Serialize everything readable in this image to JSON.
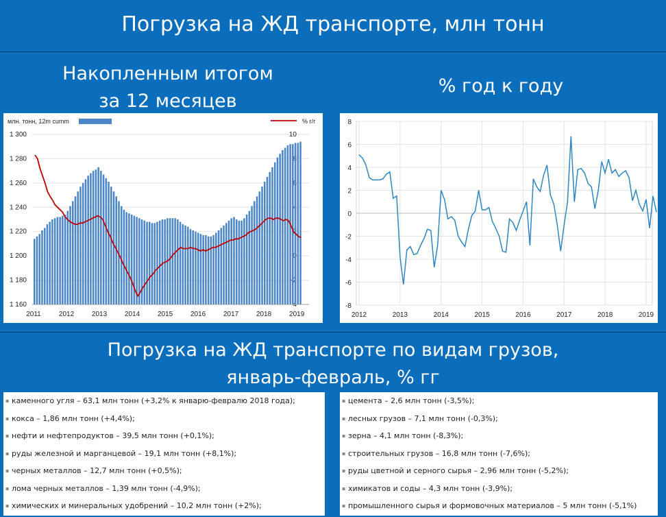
{
  "header": {
    "title": "Погрузка на ЖД транспорте, млн тонн",
    "left_subtitle_line1": "Накопленным итогом",
    "left_subtitle_line2": "за 12 месяцев",
    "right_subtitle": "% год к году",
    "section2_line1": "Погрузка на ЖД транспорте по видам грузов,",
    "section2_line2": "январь-февраль, % гг"
  },
  "chart_data": [
    {
      "type": "bar",
      "legend_left": "млн. тонн, 12m cumm",
      "legend_right": "% г/г",
      "bar_color": "#4a86c8",
      "line_color": "#c00000",
      "x_ticks": [
        "2011",
        "2012",
        "2013",
        "2014",
        "2015",
        "2016",
        "2017",
        "2018",
        "2019"
      ],
      "ylim": [
        1160,
        1300
      ],
      "y_ticks": [
        "1 160",
        "1 180",
        "1 200",
        "1 220",
        "1 240",
        "1 260",
        "1 280",
        "1 300"
      ],
      "y2lim": [
        -4,
        10
      ],
      "y2_ticks": [
        "-4",
        "-2",
        "0",
        "2",
        "4",
        "6",
        "8",
        "10"
      ],
      "series": [
        {
          "values": [
            1214,
            1216,
            1218,
            1221,
            1223,
            1226,
            1228,
            1230,
            1231,
            1232,
            1232,
            1233,
            1234,
            1237,
            1241,
            1245,
            1249,
            1253,
            1257,
            1260,
            1263,
            1266,
            1268,
            1270,
            1271,
            1273,
            1270,
            1267,
            1264,
            1261,
            1257,
            1253,
            1249,
            1245,
            1241,
            1238,
            1236,
            1235,
            1234,
            1233,
            1232,
            1231,
            1230,
            1229,
            1228,
            1228,
            1227,
            1227,
            1228,
            1229,
            1230,
            1230,
            1231,
            1231,
            1231,
            1231,
            1230,
            1228,
            1226,
            1225,
            1224,
            1222,
            1221,
            1220,
            1219,
            1218,
            1217,
            1217,
            1216,
            1216,
            1217,
            1219,
            1221,
            1223,
            1225,
            1227,
            1229,
            1231,
            1232,
            1230,
            1229,
            1229,
            1231,
            1234,
            1237,
            1241,
            1245,
            1249,
            1253,
            1257,
            1261,
            1265,
            1269,
            1273,
            1277,
            1281,
            1284,
            1287,
            1289,
            1291,
            1292,
            1292,
            1293,
            1293,
            1294
          ]
        },
        {
          "values": [
            8.3,
            8.0,
            7.2,
            6.6,
            6.0,
            5.3,
            4.9,
            4.6,
            4.2,
            4.0,
            3.8,
            3.6,
            3.2,
            3.0,
            2.8,
            2.7,
            2.6,
            2.6,
            2.7,
            2.7,
            2.8,
            2.9,
            3.0,
            3.1,
            3.2,
            3.3,
            3.2,
            3.0,
            2.5,
            2.0,
            1.6,
            1.1,
            0.7,
            0.3,
            -0.1,
            -0.6,
            -1.0,
            -1.4,
            -1.8,
            -2.3,
            -2.9,
            -3.3,
            -3.0,
            -2.6,
            -2.3,
            -2.0,
            -1.7,
            -1.5,
            -1.2,
            -1.0,
            -0.8,
            -0.6,
            -0.5,
            -0.4,
            -0.2,
            0.1,
            0.3,
            0.5,
            0.7,
            0.6,
            0.6,
            0.6,
            0.7,
            0.6,
            0.6,
            0.5,
            0.4,
            0.5,
            0.4,
            0.5,
            0.6,
            0.7,
            0.7,
            0.8,
            0.9,
            1.0,
            1.1,
            1.2,
            1.3,
            1.3,
            1.4,
            1.4,
            1.5,
            1.6,
            1.7,
            1.9,
            2.0,
            2.1,
            2.2,
            2.4,
            2.6,
            2.8,
            3.0,
            3.1,
            3.1,
            3.0,
            3.1,
            3.1,
            3.0,
            2.9,
            3.0,
            2.9,
            2.5,
            2.0,
            1.8,
            1.6,
            1.5
          ]
        }
      ]
    },
    {
      "type": "line",
      "line_color": "#2e86c1",
      "x_ticks": [
        "2012",
        "2013",
        "2014",
        "2015",
        "2016",
        "2017",
        "2018",
        "2019"
      ],
      "ylim": [
        -8,
        8
      ],
      "y_ticks": [
        "-8",
        "-6",
        "-4",
        "-2",
        "0",
        "2",
        "4",
        "6",
        "8"
      ],
      "series": [
        {
          "values": [
            5.1,
            4.8,
            4.2,
            3.1,
            2.9,
            2.9,
            2.9,
            3.0,
            3.4,
            3.6,
            1.3,
            1.5,
            -3.8,
            -6.2,
            -3.2,
            -2.9,
            -3.6,
            -3.5,
            -2.8,
            -2.2,
            -1.4,
            -1.5,
            -4.7,
            -2.8,
            2.0,
            1.2,
            -0.5,
            -0.3,
            -0.6,
            -2.0,
            -2.5,
            -2.9,
            -1.4,
            -0.2,
            0.2,
            2.0,
            0.3,
            0.3,
            0.5,
            -0.7,
            -1.3,
            -2.0,
            -3.3,
            -3.4,
            -0.5,
            -0.8,
            -1.5,
            -0.6,
            0.2,
            1.0,
            -2.8,
            3.0,
            2.3,
            1.9,
            3.3,
            4.2,
            1.6,
            0.8,
            -1.0,
            -3.3,
            -1.0,
            1.0,
            6.7,
            1.0,
            3.8,
            3.9,
            3.5,
            2.6,
            2.3,
            0.4,
            2.0,
            4.5,
            3.5,
            4.7,
            3.5,
            3.8,
            3.2,
            3.5,
            3.7,
            3.1,
            1.1,
            2.0,
            0.8,
            0.2,
            1.2,
            -1.3,
            1.5,
            0.1
          ]
        }
      ]
    }
  ],
  "lists": {
    "left": [
      "каменного угля – 63,1 млн тонн (+3,2% к январю-февралю 2018 года);",
      "кокса – 1,86 млн тонн (+4,4%);",
      "нефти и нефтепродуктов – 39,5 млн тонн (+0,1%);",
      "руды железной и марганцевой – 19,1 млн тонн (+8,1%);",
      "черных металлов – 12,7 млн тонн (+0,5%);",
      "лома черных металлов – 1,39 млн тонн (-4,9%);",
      "химических и минеральных удобрений – 10,2 млн тонн (+2%);"
    ],
    "right": [
      "цемента – 2,6 млн тонн (-3,5%);",
      "лесных грузов – 7,1 млн тонн (-0,3%);",
      "зерна – 4,1 млн тонн (-8,3%);",
      "строительных грузов – 16,8 млн тонн (-7,6%);",
      "руды цветной и серного сырья – 2,96 млн тонн (-5,2%);",
      "химикатов и соды – 4,3 млн тонн (-3,9%);",
      "промышленного сырья и формовочных материалов – 5 млн тонн (-5,1%)"
    ]
  }
}
